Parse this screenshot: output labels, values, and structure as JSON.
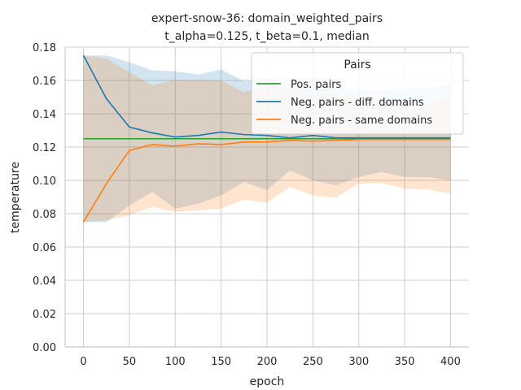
{
  "chart_data": {
    "type": "line",
    "title": "expert-snow-36: domain_weighted_pairs",
    "subtitle": "t_alpha=0.125, t_beta=0.1, median",
    "xlabel": "epoch",
    "ylabel": "temperature",
    "xlim": [
      -20,
      420
    ],
    "ylim": [
      0,
      0.18
    ],
    "x_ticks": [
      0,
      50,
      100,
      150,
      200,
      250,
      300,
      350,
      400
    ],
    "y_ticks": [
      0.0,
      0.02,
      0.04,
      0.06,
      0.08,
      0.1,
      0.12,
      0.14,
      0.16,
      0.18
    ],
    "grid": true,
    "legend": {
      "title": "Pairs",
      "placement": "top-right"
    },
    "x": [
      0,
      25,
      50,
      75,
      100,
      125,
      150,
      175,
      200,
      225,
      250,
      275,
      300,
      325,
      350,
      375,
      400
    ],
    "series": [
      {
        "name": "Pos. pairs",
        "color": "#2ca02c",
        "values": [
          0.125,
          0.125,
          0.125,
          0.125,
          0.125,
          0.125,
          0.125,
          0.125,
          0.125,
          0.125,
          0.125,
          0.125,
          0.125,
          0.125,
          0.125,
          0.125,
          0.125
        ]
      },
      {
        "name": "Neg. pairs - diff. domains",
        "color": "#1f77b4",
        "values": [
          0.175,
          0.149,
          0.132,
          0.1285,
          0.126,
          0.127,
          0.129,
          0.1275,
          0.127,
          0.1255,
          0.127,
          0.1255,
          0.1255,
          0.1255,
          0.1255,
          0.1255,
          0.1255
        ],
        "band_lower": [
          0.075,
          0.075,
          0.085,
          0.093,
          0.083,
          0.086,
          0.091,
          0.099,
          0.094,
          0.106,
          0.1,
          0.097,
          0.102,
          0.105,
          0.102,
          0.102,
          0.1
        ],
        "band_upper": [
          0.175,
          0.175,
          0.171,
          0.166,
          0.1655,
          0.1635,
          0.1665,
          0.1595,
          0.161,
          0.157,
          0.158,
          0.156,
          0.1545,
          0.1545,
          0.155,
          0.155,
          0.158
        ]
      },
      {
        "name": "Neg. pairs - same domains",
        "color": "#ff7f0e",
        "values": [
          0.075,
          0.098,
          0.118,
          0.1215,
          0.1205,
          0.122,
          0.1215,
          0.123,
          0.123,
          0.124,
          0.1235,
          0.124,
          0.1245,
          0.1245,
          0.1245,
          0.1245,
          0.1245
        ],
        "band_lower": [
          0.075,
          0.076,
          0.079,
          0.084,
          0.081,
          0.082,
          0.083,
          0.0885,
          0.0865,
          0.096,
          0.091,
          0.0895,
          0.098,
          0.0985,
          0.095,
          0.0945,
          0.092
        ],
        "band_upper": [
          0.175,
          0.173,
          0.165,
          0.157,
          0.1605,
          0.16,
          0.16,
          0.153,
          0.157,
          0.154,
          0.152,
          0.152,
          0.15,
          0.148,
          0.147,
          0.146,
          0.15
        ]
      }
    ]
  }
}
